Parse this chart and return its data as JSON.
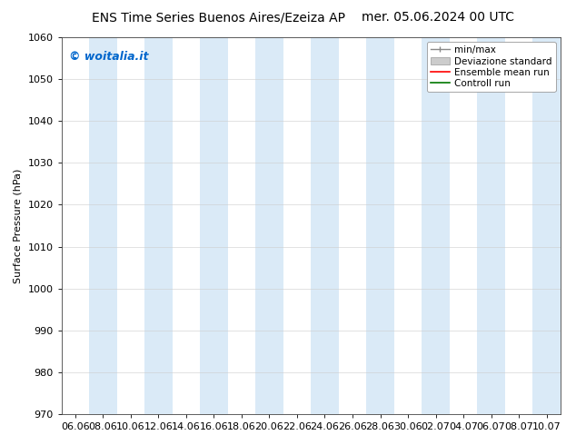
{
  "title_left": "ENS Time Series Buenos Aires/Ezeiza AP",
  "title_right": "mer. 05.06.2024 00 UTC",
  "ylabel": "Surface Pressure (hPa)",
  "ylim": [
    970,
    1060
  ],
  "yticks": [
    970,
    980,
    990,
    1000,
    1010,
    1020,
    1030,
    1040,
    1050,
    1060
  ],
  "xtick_labels": [
    "06.06",
    "08.06",
    "10.06",
    "12.06",
    "14.06",
    "16.06",
    "18.06",
    "20.06",
    "22.06",
    "24.06",
    "26.06",
    "28.06",
    "30.06",
    "02.07",
    "04.07",
    "06.07",
    "08.07",
    "10.07"
  ],
  "watermark": "© woitalia.it",
  "watermark_color": "#0066cc",
  "background_color": "#ffffff",
  "band_color": "#d6e8f7",
  "band_alpha": 0.9,
  "legend_entries": [
    "min/max",
    "Deviazione standard",
    "Ensemble mean run",
    "Controll run"
  ],
  "legend_line_colors": [
    "#888888",
    "#cccccc",
    "#ff0000",
    "#007700"
  ],
  "title_fontsize": 10,
  "ylabel_fontsize": 8,
  "tick_fontsize": 8,
  "watermark_fontsize": 9,
  "legend_fontsize": 7.5
}
